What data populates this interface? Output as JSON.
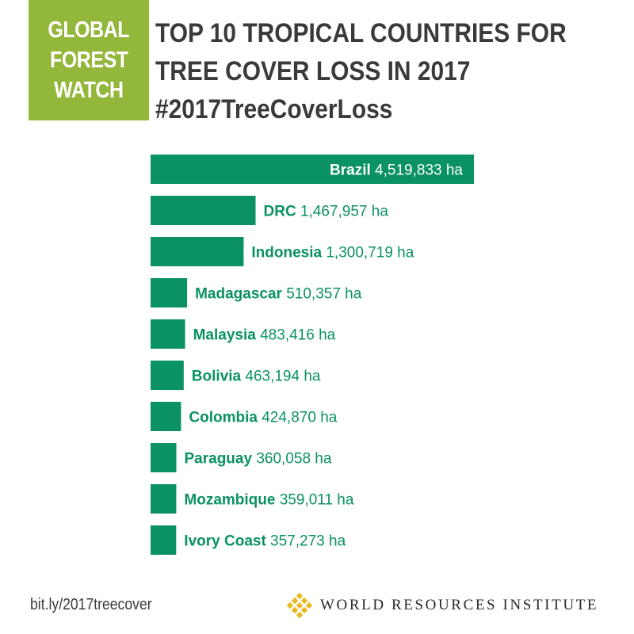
{
  "logo": {
    "lines": [
      "GLOBAL",
      "FOREST",
      "WATCH"
    ]
  },
  "title": {
    "lines": [
      "TOP 10 TROPICAL COUNTRIES FOR",
      "TREE COVER LOSS IN 2017",
      "#2017TreeCoverLoss"
    ]
  },
  "chart_data": {
    "type": "bar",
    "orientation": "horizontal",
    "unit": "ha",
    "categories": [
      "Brazil",
      "DRC",
      "Indonesia",
      "Madagascar",
      "Malaysia",
      "Bolivia",
      "Colombia",
      "Paraguay",
      "Mozambique",
      "Ivory Coast"
    ],
    "values": [
      4519833,
      1467957,
      1300719,
      510357,
      483416,
      463194,
      424870,
      360058,
      359011,
      357273
    ],
    "value_labels": [
      "4,519,833 ha",
      "1,467,957 ha",
      "1,300,719 ha",
      "510,357 ha",
      "483,416 ha",
      "463,194 ha",
      "424,870 ha",
      "360,058 ha",
      "359,011 ha",
      "357,273 ha"
    ],
    "title": "TOP 10 TROPICAL COUNTRIES FOR TREE COVER LOSS IN 2017",
    "xlabel": "",
    "ylabel": "",
    "grid": false,
    "legend": "none",
    "bar_color": "#0a9164",
    "label_color": "#0a9164"
  },
  "footer": {
    "link": "bit.ly/2017treecover",
    "org": "WORLD RESOURCES INSTITUTE"
  },
  "colors": {
    "logo_bg": "#93b73b",
    "title": "#3a3a3a",
    "bar": "#0a9164",
    "wri_gold": "#e8b923"
  },
  "icons": {
    "wri_logo": "wri-lattice-icon"
  }
}
